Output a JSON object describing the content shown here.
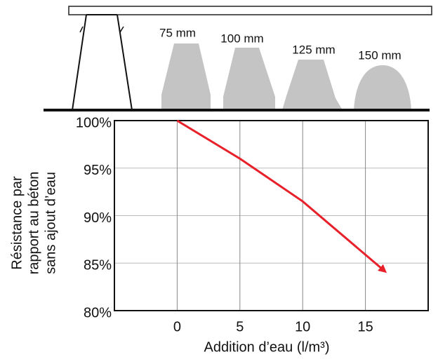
{
  "chart_data": {
    "type": "line",
    "slump_labels": [
      "75 mm",
      "100 mm",
      "125 mm",
      "150 mm"
    ],
    "xlabel": "Addition d’eau (l/m³)",
    "ylabel": [
      "Résistance par",
      "rapport au béton",
      "sans ajout d’eau"
    ],
    "x": [
      0,
      5,
      10,
      16.5
    ],
    "series": [
      {
        "color": "#e8202a",
        "values": [
          100,
          96,
          91.5,
          84.2
        ]
      }
    ],
    "xlim": [
      -5,
      20
    ],
    "xticks": [
      0,
      5,
      10,
      15
    ],
    "ylim": [
      80,
      100
    ],
    "yticks": [
      {
        "value": 80,
        "label": "80%"
      },
      {
        "value": 85,
        "label": "85%"
      },
      {
        "value": 90,
        "label": "90%"
      },
      {
        "value": 95,
        "label": "95%"
      },
      {
        "value": 100,
        "label": "100%"
      }
    ],
    "grid": true
  }
}
